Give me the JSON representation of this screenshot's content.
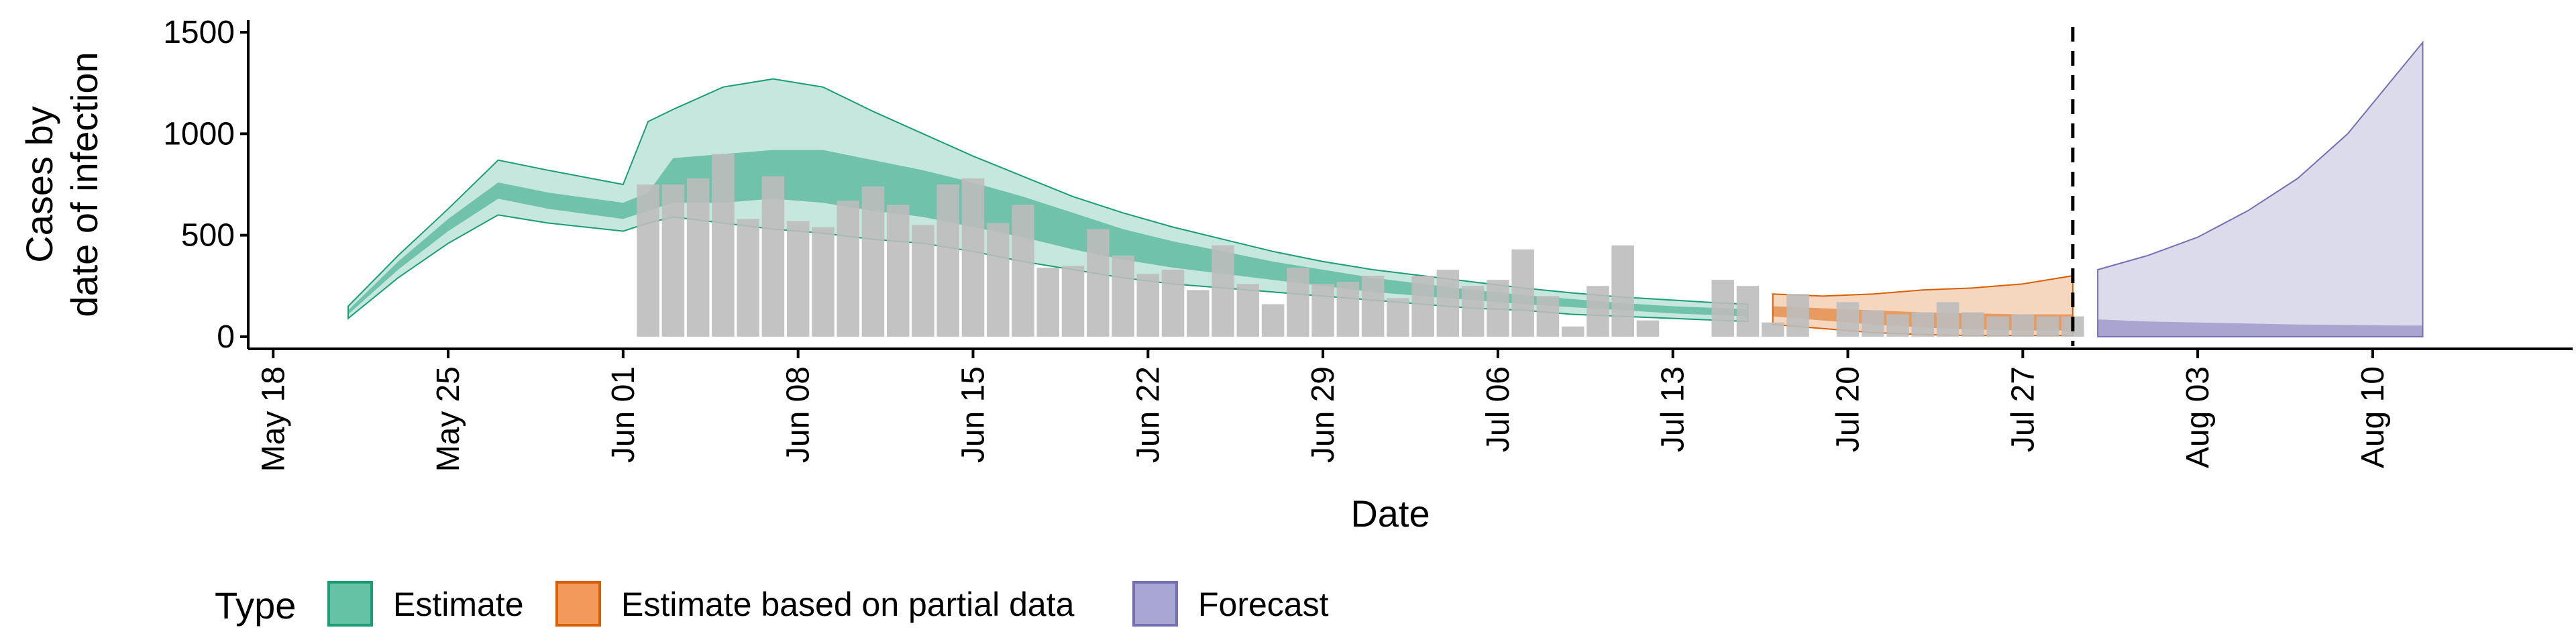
{
  "chart_data": {
    "type": "area",
    "xlabel": "Date",
    "ylabel_lines": [
      "Cases by",
      "date of infection"
    ],
    "ylim": [
      -60,
      1560
    ],
    "xlim": [
      "2020-05-17",
      "2020-08-18"
    ],
    "y_ticks": [
      0,
      500,
      1000,
      1500
    ],
    "y_tick_labels": [
      "0",
      "500",
      "1000",
      "1500"
    ],
    "x_ticks": [
      "2020-05-18",
      "2020-05-25",
      "2020-06-01",
      "2020-06-08",
      "2020-06-15",
      "2020-06-22",
      "2020-06-29",
      "2020-07-06",
      "2020-07-13",
      "2020-07-20",
      "2020-07-27",
      "2020-08-03",
      "2020-08-10"
    ],
    "x_tick_labels": [
      "May 18",
      "May 25",
      "Jun 01",
      "Jun 08",
      "Jun 15",
      "Jun 22",
      "Jun 29",
      "Jul 06",
      "Jul 13",
      "Jul 20",
      "Jul 27",
      "Aug 03",
      "Aug 10"
    ],
    "vline_date": "2020-07-29",
    "grid": false,
    "legend": {
      "title": "Type",
      "position": "bottom-left",
      "items": [
        {
          "label": "Estimate",
          "fill": "#66c2a5",
          "stroke": "#1b9e77"
        },
        {
          "label": "Estimate based on partial data",
          "fill": "#f19a5b",
          "stroke": "#d95f02"
        },
        {
          "label": "Forecast",
          "fill": "#a9a6d3",
          "stroke": "#7570b3"
        }
      ]
    },
    "colors": {
      "estimate": "#1b9e77",
      "partial": "#d95f02",
      "forecast": "#7570b3",
      "bars": "#bdbdbd"
    },
    "observed_cases": {
      "dates": [
        "2020-06-02",
        "2020-06-03",
        "2020-06-04",
        "2020-06-05",
        "2020-06-06",
        "2020-06-07",
        "2020-06-08",
        "2020-06-09",
        "2020-06-10",
        "2020-06-11",
        "2020-06-12",
        "2020-06-13",
        "2020-06-14",
        "2020-06-15",
        "2020-06-16",
        "2020-06-17",
        "2020-06-18",
        "2020-06-19",
        "2020-06-20",
        "2020-06-21",
        "2020-06-22",
        "2020-06-23",
        "2020-06-24",
        "2020-06-25",
        "2020-06-26",
        "2020-06-27",
        "2020-06-28",
        "2020-06-29",
        "2020-06-30",
        "2020-07-01",
        "2020-07-02",
        "2020-07-03",
        "2020-07-04",
        "2020-07-05",
        "2020-07-06",
        "2020-07-07",
        "2020-07-08",
        "2020-07-09",
        "2020-07-10",
        "2020-07-11",
        "2020-07-12",
        "2020-07-13",
        "2020-07-14",
        "2020-07-15",
        "2020-07-16",
        "2020-07-17",
        "2020-07-18",
        "2020-07-19",
        "2020-07-20",
        "2020-07-21",
        "2020-07-22",
        "2020-07-23",
        "2020-07-24",
        "2020-07-25",
        "2020-07-26",
        "2020-07-27",
        "2020-07-28",
        "2020-07-29"
      ],
      "values": [
        750,
        750,
        780,
        900,
        580,
        790,
        570,
        540,
        670,
        740,
        650,
        550,
        750,
        780,
        560,
        650,
        340,
        350,
        530,
        400,
        310,
        330,
        230,
        450,
        260,
        160,
        340,
        260,
        270,
        300,
        190,
        300,
        330,
        250,
        280,
        430,
        200,
        50,
        250,
        450,
        80,
        0,
        0,
        280,
        250,
        70,
        210,
        0,
        170,
        130,
        110,
        120,
        170,
        120,
        100,
        110,
        100,
        100
      ]
    },
    "series": [
      {
        "name": "Estimate",
        "dates": [
          "2020-05-21",
          "2020-05-23",
          "2020-05-25",
          "2020-05-27",
          "2020-05-29",
          "2020-06-01",
          "2020-06-02",
          "2020-06-03",
          "2020-06-05",
          "2020-06-07",
          "2020-06-09",
          "2020-06-11",
          "2020-06-13",
          "2020-06-15",
          "2020-06-17",
          "2020-06-19",
          "2020-06-21",
          "2020-06-23",
          "2020-06-25",
          "2020-06-27",
          "2020-06-29",
          "2020-07-01",
          "2020-07-03",
          "2020-07-05",
          "2020-07-07",
          "2020-07-09",
          "2020-07-11",
          "2020-07-13",
          "2020-07-15",
          "2020-07-16"
        ],
        "lower_90": [
          90,
          290,
          460,
          600,
          560,
          520,
          560,
          590,
          560,
          530,
          510,
          480,
          460,
          420,
          370,
          330,
          290,
          260,
          240,
          220,
          200,
          180,
          160,
          140,
          130,
          110,
          100,
          90,
          80,
          75
        ],
        "lower_50": [
          110,
          330,
          520,
          680,
          630,
          580,
          620,
          660,
          660,
          680,
          660,
          620,
          590,
          540,
          490,
          430,
          380,
          340,
          310,
          280,
          250,
          220,
          200,
          180,
          160,
          145,
          130,
          115,
          105,
          100
        ],
        "upper_50": [
          130,
          370,
          580,
          760,
          710,
          660,
          710,
          880,
          900,
          920,
          920,
          870,
          820,
          760,
          690,
          610,
          530,
          470,
          420,
          370,
          330,
          290,
          260,
          230,
          205,
          185,
          165,
          150,
          140,
          135
        ],
        "upper_90": [
          150,
          400,
          630,
          870,
          820,
          750,
          1060,
          1120,
          1230,
          1270,
          1230,
          1110,
          1000,
          890,
          790,
          690,
          610,
          540,
          480,
          420,
          370,
          330,
          300,
          270,
          240,
          215,
          195,
          180,
          165,
          160
        ]
      },
      {
        "name": "Estimate based on partial data",
        "dates": [
          "2020-07-17",
          "2020-07-19",
          "2020-07-21",
          "2020-07-23",
          "2020-07-25",
          "2020-07-27",
          "2020-07-29"
        ],
        "lower_90": [
          60,
          40,
          20,
          10,
          5,
          5,
          5
        ],
        "lower_50": [
          100,
          80,
          60,
          45,
          35,
          30,
          30
        ],
        "upper_50": [
          150,
          140,
          130,
          120,
          115,
          110,
          110
        ],
        "upper_90": [
          210,
          200,
          210,
          230,
          240,
          260,
          300
        ]
      },
      {
        "name": "Forecast",
        "dates": [
          "2020-07-30",
          "2020-08-01",
          "2020-08-03",
          "2020-08-05",
          "2020-08-07",
          "2020-08-09",
          "2020-08-11",
          "2020-08-12"
        ],
        "lower_90": [
          0,
          0,
          0,
          0,
          0,
          0,
          0,
          0
        ],
        "lower_50": [
          0,
          0,
          0,
          0,
          0,
          0,
          0,
          0
        ],
        "upper_50": [
          85,
          75,
          70,
          65,
          60,
          58,
          55,
          55
        ],
        "upper_90": [
          330,
          400,
          490,
          620,
          780,
          1000,
          1300,
          1450
        ]
      }
    ]
  }
}
